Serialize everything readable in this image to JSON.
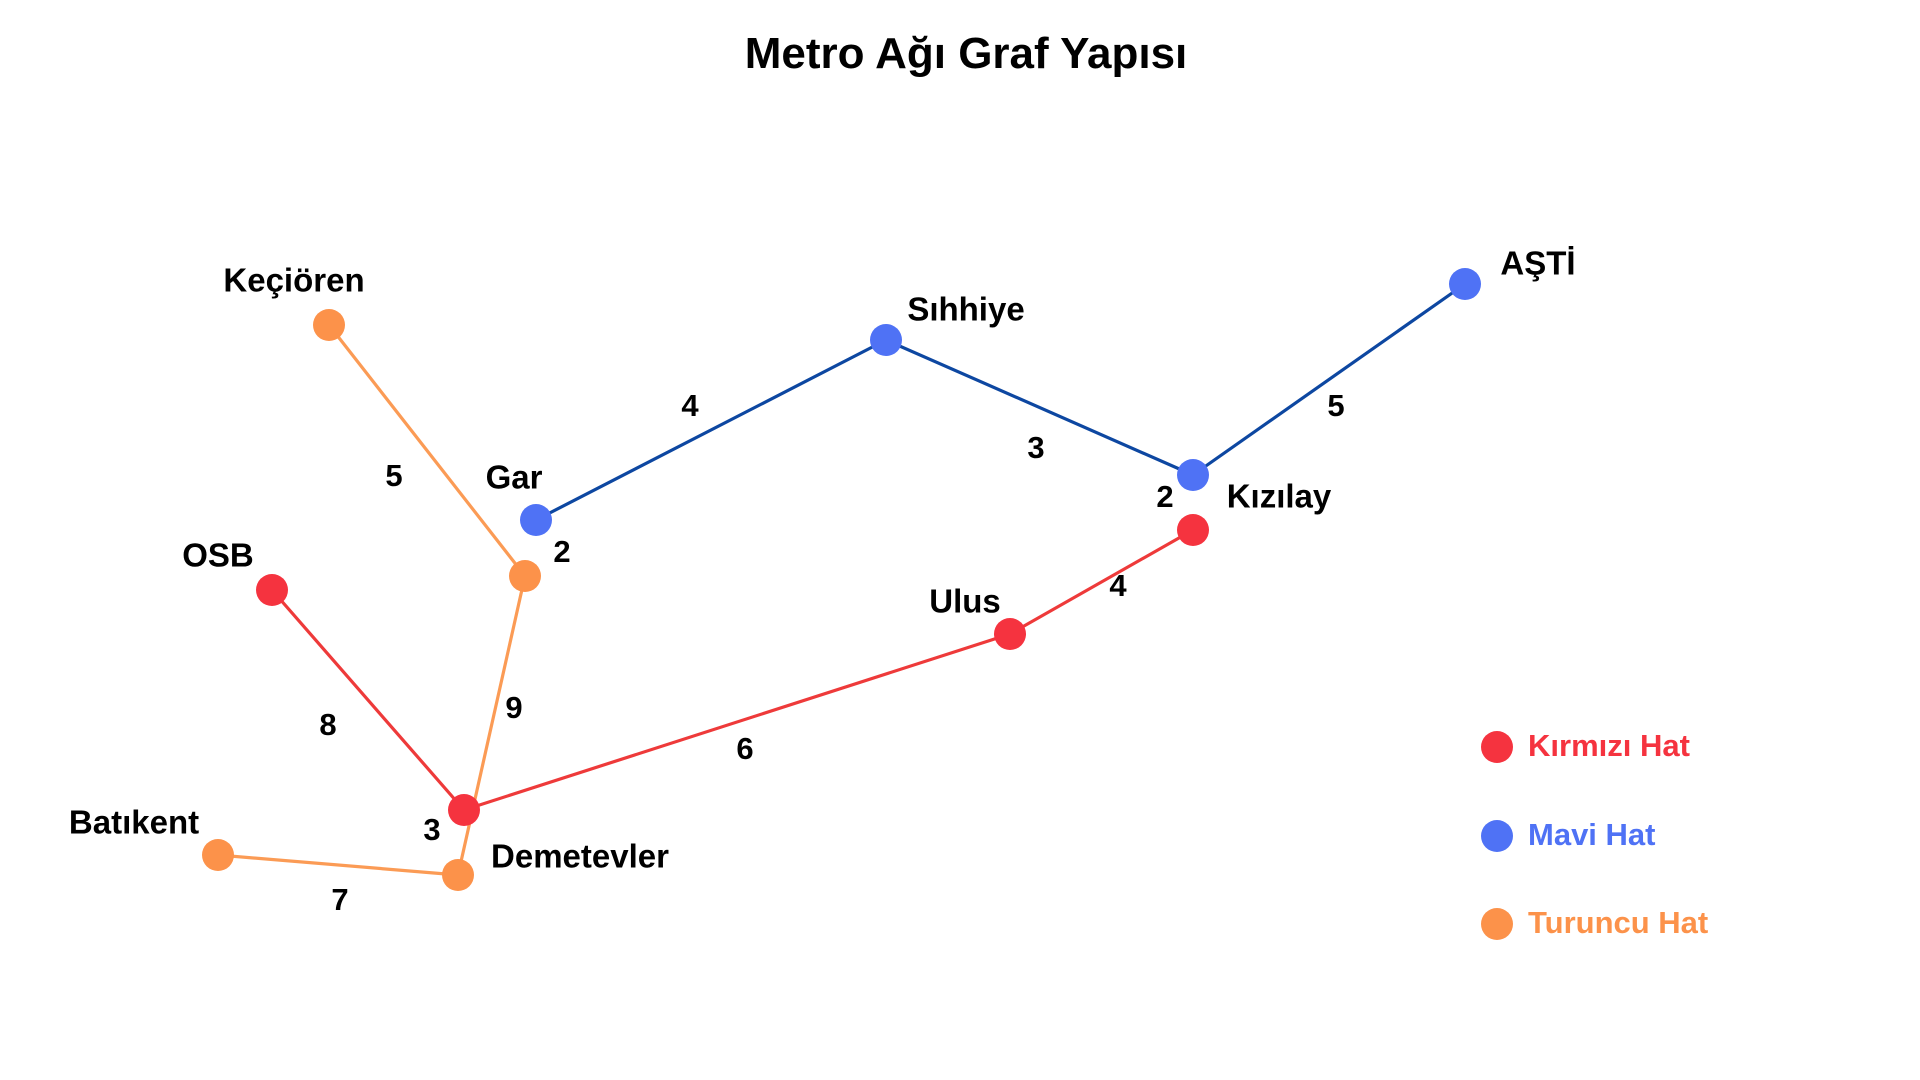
{
  "title": "Metro Ağı Graf Yapısı",
  "lines": {
    "red": {
      "name": "Kırmızı Hat",
      "node_color": "#f5333f",
      "edge_color": "#ee3a3a"
    },
    "blue": {
      "name": "Mavi Hat",
      "node_color": "#4f72f5",
      "edge_color": "#0d47a1"
    },
    "orange": {
      "name": "Turuncu Hat",
      "node_color": "#fc924a",
      "edge_color": "#fb9b55"
    }
  },
  "stations": [
    {
      "id": "kecioren_o",
      "label": "Keçiören",
      "line": "orange"
    },
    {
      "id": "gar_b",
      "label": "Gar",
      "line": "blue"
    },
    {
      "id": "sihhiye_b",
      "label": "Sıhhiye",
      "line": "blue"
    },
    {
      "id": "asti_b",
      "label": "AŞTİ",
      "line": "blue"
    },
    {
      "id": "kizilay_b",
      "label": "Kızılay",
      "line": "blue"
    },
    {
      "id": "kizilay_r",
      "label": "",
      "line": "red"
    },
    {
      "id": "gar_o",
      "label": "",
      "line": "orange"
    },
    {
      "id": "osb_r",
      "label": "OSB",
      "line": "red"
    },
    {
      "id": "ulus_r",
      "label": "Ulus",
      "line": "red"
    },
    {
      "id": "demetevler_r",
      "label": "",
      "line": "red"
    },
    {
      "id": "batikent_o",
      "label": "Batıkent",
      "line": "orange"
    },
    {
      "id": "demetevler_o",
      "label": "Demetevler",
      "line": "orange"
    }
  ],
  "edges": [
    {
      "from": "gar_b",
      "to": "sihhiye_b",
      "weight": "4",
      "line": "blue"
    },
    {
      "from": "sihhiye_b",
      "to": "kizilay_b",
      "weight": "3",
      "line": "blue"
    },
    {
      "from": "kizilay_b",
      "to": "asti_b",
      "weight": "5",
      "line": "blue"
    },
    {
      "from": "kecioren_o",
      "to": "gar_o",
      "weight": "5",
      "line": "orange"
    },
    {
      "from": "gar_o",
      "to": "demetevler_o",
      "weight": "9",
      "line": "orange"
    },
    {
      "from": "batikent_o",
      "to": "demetevler_o",
      "weight": "7",
      "line": "orange"
    },
    {
      "from": "osb_r",
      "to": "demetevler_r",
      "weight": "8",
      "line": "red"
    },
    {
      "from": "demetevler_r",
      "to": "ulus_r",
      "weight": "6",
      "line": "red"
    },
    {
      "from": "ulus_r",
      "to": "kizilay_r",
      "weight": "4",
      "line": "red"
    }
  ],
  "transfers": [
    {
      "a": "gar_b",
      "b": "gar_o",
      "weight": "2"
    },
    {
      "a": "kizilay_b",
      "b": "kizilay_r",
      "weight": "2"
    },
    {
      "a": "demetevler_r",
      "b": "demetevler_o",
      "weight": "3"
    }
  ],
  "legend": [
    {
      "line": "red",
      "label": "Kırmızı Hat"
    },
    {
      "line": "blue",
      "label": "Mavi Hat"
    },
    {
      "line": "orange",
      "label": "Turuncu Hat"
    }
  ]
}
